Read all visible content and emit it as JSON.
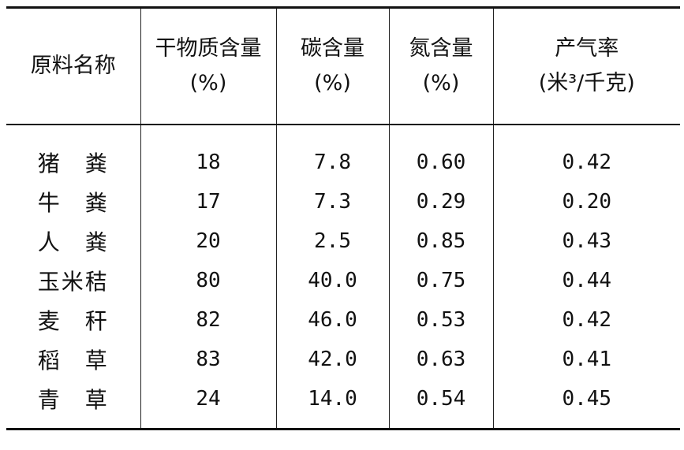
{
  "table": {
    "headers": [
      {
        "line1": "原料名称",
        "line2": ""
      },
      {
        "line1": "干物质含量",
        "line2": "(%)"
      },
      {
        "line1": "碳含量",
        "line2": "(%)"
      },
      {
        "line1": "氮含量",
        "line2": "(%)"
      },
      {
        "line1": "产气率",
        "line2": "(米³/千克)"
      }
    ],
    "rows": [
      [
        "猪　粪",
        "18",
        "7.8",
        "0.60",
        "0.42"
      ],
      [
        "牛　粪",
        "17",
        "7.3",
        "0.29",
        "0.20"
      ],
      [
        "人　粪",
        "20",
        "2.5",
        "0.85",
        "0.43"
      ],
      [
        "玉米秸",
        "80",
        "40.0",
        "0.75",
        "0.44"
      ],
      [
        "麦　秆",
        "82",
        "46.0",
        "0.53",
        "0.42"
      ],
      [
        "稻　草",
        "83",
        "42.0",
        "0.63",
        "0.41"
      ],
      [
        "青　草",
        "24",
        "14.0",
        "0.54",
        "0.45"
      ]
    ]
  }
}
